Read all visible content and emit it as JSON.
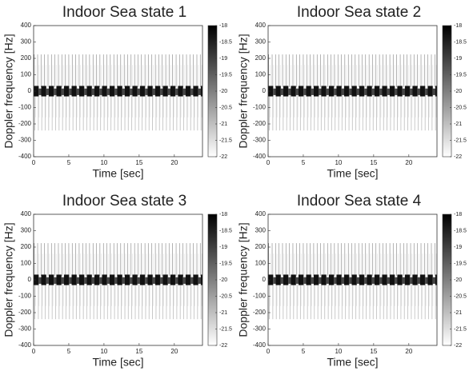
{
  "chart_data": [
    {
      "type": "spectrogram",
      "title": "Indoor Sea state 1",
      "xlabel": "Time [sec]",
      "ylabel": "Doppler frequency [Hz]",
      "xlim": [
        0,
        24
      ],
      "xticks": [
        0,
        5,
        10,
        15,
        20
      ],
      "ylim": [
        -400,
        400
      ],
      "yticks": [
        -400,
        -300,
        -200,
        -100,
        0,
        100,
        200,
        300,
        400
      ],
      "clim": [
        -22,
        -18
      ],
      "cticks": [
        -18,
        -18.5,
        -19,
        -19.5,
        -20,
        -20.5,
        -21,
        -21.5,
        -22
      ]
    },
    {
      "type": "spectrogram",
      "title": "Indoor Sea state 2",
      "xlabel": "Time [sec]",
      "ylabel": "Doppler frequency [Hz]",
      "xlim": [
        0,
        24
      ],
      "xticks": [
        0,
        5,
        10,
        15,
        20
      ],
      "ylim": [
        -400,
        400
      ],
      "yticks": [
        -400,
        -300,
        -200,
        -100,
        0,
        100,
        200,
        300,
        400
      ],
      "clim": [
        -22,
        -18
      ],
      "cticks": [
        -18,
        -18.5,
        -19,
        -19.5,
        -20,
        -20.5,
        -21,
        -21.5,
        -22
      ]
    },
    {
      "type": "spectrogram",
      "title": "Indoor Sea state 3",
      "xlabel": "Time [sec]",
      "ylabel": "Doppler frequency [Hz]",
      "xlim": [
        0,
        24
      ],
      "xticks": [
        0,
        5,
        10,
        15,
        20
      ],
      "ylim": [
        -400,
        400
      ],
      "yticks": [
        -400,
        -300,
        -200,
        -100,
        0,
        100,
        200,
        300,
        400
      ],
      "clim": [
        -22,
        -18
      ],
      "cticks": [
        -18,
        -18.5,
        -19,
        -19.5,
        -20,
        -20.5,
        -21,
        -21.5,
        -22
      ]
    },
    {
      "type": "spectrogram",
      "title": "Indoor Sea state 4",
      "xlabel": "Time [sec]",
      "ylabel": "Doppler frequency [Hz]",
      "xlim": [
        0,
        24
      ],
      "xticks": [
        0,
        5,
        10,
        15,
        20
      ],
      "ylim": [
        -400,
        400
      ],
      "yticks": [
        -400,
        -300,
        -200,
        -100,
        0,
        100,
        200,
        300,
        400
      ],
      "clim": [
        -22,
        -18
      ],
      "cticks": [
        -18,
        -18.5,
        -19,
        -19.5,
        -20,
        -20.5,
        -21,
        -21.5,
        -22
      ]
    }
  ]
}
